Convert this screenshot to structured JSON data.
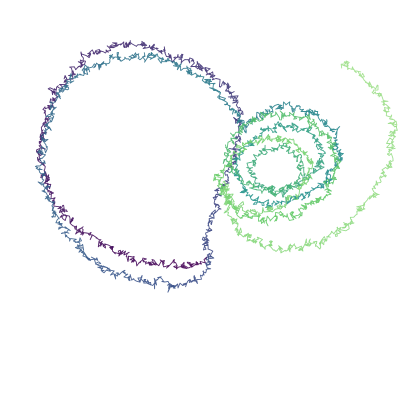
{
  "figure": {
    "background": "#ffffff",
    "style": "random-walk trajectory, viridis colour progression",
    "colormap": [
      "#440154",
      "#3b528b",
      "#21918c",
      "#5ec962",
      "#9fe08a"
    ],
    "segment_count": 60
  }
}
